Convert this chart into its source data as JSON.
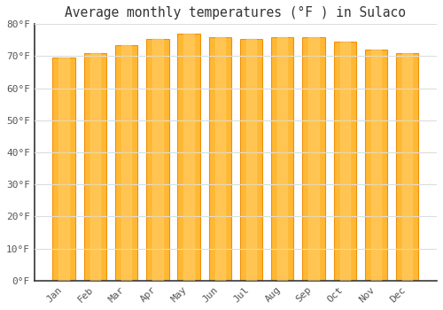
{
  "title": "Average monthly temperatures (°F ) in Sulaco",
  "months": [
    "Jan",
    "Feb",
    "Mar",
    "Apr",
    "May",
    "Jun",
    "Jul",
    "Aug",
    "Sep",
    "Oct",
    "Nov",
    "Dec"
  ],
  "values": [
    69.5,
    71,
    73.5,
    75.5,
    77,
    76,
    75.5,
    76,
    76,
    74.5,
    72,
    71
  ],
  "bar_color_center": "#FFB833",
  "bar_color_edge": "#F0900A",
  "background_color": "#FFFFFF",
  "plot_bg_color": "#FFFFFF",
  "grid_color": "#DDDDDD",
  "text_color": "#555555",
  "axis_color": "#333333",
  "ylim": [
    0,
    80
  ],
  "yticks": [
    0,
    10,
    20,
    30,
    40,
    50,
    60,
    70,
    80
  ],
  "title_fontsize": 10.5,
  "tick_fontsize": 8.0
}
